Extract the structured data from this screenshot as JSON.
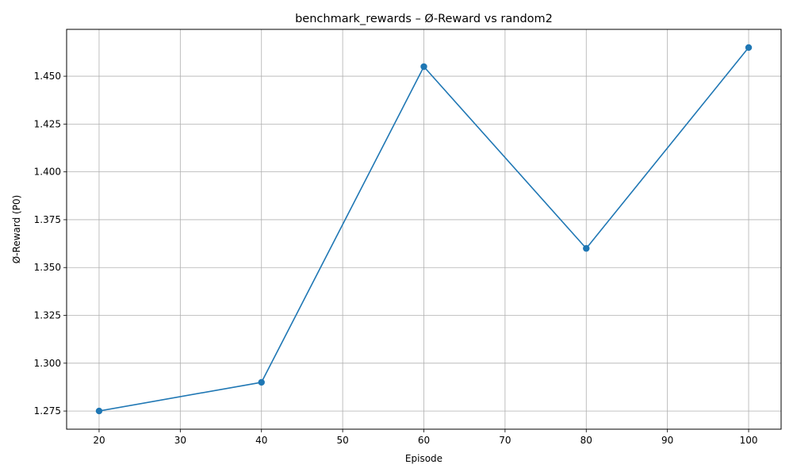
{
  "chart_data": {
    "type": "line",
    "title": "benchmark_rewards – Ø-Reward vs random2",
    "xlabel": "Episode",
    "ylabel": "Ø-Reward (P0)",
    "xlim": [
      16,
      104
    ],
    "ylim": [
      1.2655,
      1.4745
    ],
    "x_ticks": [
      20,
      30,
      40,
      50,
      60,
      70,
      80,
      90,
      100
    ],
    "y_ticks": [
      1.275,
      1.3,
      1.325,
      1.35,
      1.375,
      1.4,
      1.425,
      1.45
    ],
    "y_tick_labels": [
      "1.275",
      "1.300",
      "1.325",
      "1.350",
      "1.375",
      "1.400",
      "1.425",
      "1.450"
    ],
    "x_tick_labels": [
      "20",
      "30",
      "40",
      "50",
      "60",
      "70",
      "80",
      "90",
      "100"
    ],
    "grid": true,
    "series": [
      {
        "color": "#1f77b4",
        "marker": "circle",
        "x": [
          20,
          40,
          60,
          80,
          100
        ],
        "y": [
          1.275,
          1.29,
          1.455,
          1.36,
          1.465
        ]
      }
    ]
  }
}
